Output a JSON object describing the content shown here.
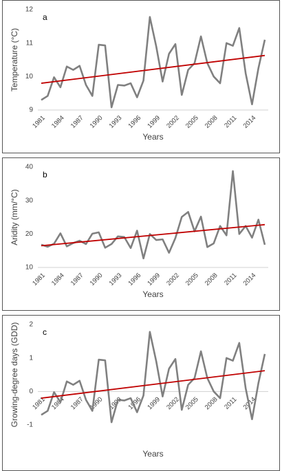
{
  "chart_data": [
    {
      "type": "line",
      "label": "a",
      "y_label": "Temperature (°C)",
      "x_label": "Years",
      "x": [
        1981,
        1982,
        1983,
        1984,
        1985,
        1986,
        1987,
        1988,
        1989,
        1990,
        1991,
        1992,
        1993,
        1994,
        1995,
        1996,
        1997,
        1998,
        1999,
        2000,
        2001,
        2002,
        2003,
        2004,
        2005,
        2006,
        2007,
        2008,
        2009,
        2010,
        2011,
        2012,
        2013,
        2014,
        2015,
        2016
      ],
      "series": [
        {
          "color": "#808080",
          "values": [
            9.3,
            9.42,
            9.98,
            9.68,
            10.3,
            10.2,
            10.32,
            9.75,
            9.42,
            10.95,
            10.93,
            9.08,
            9.75,
            9.73,
            9.8,
            9.38,
            9.88,
            11.78,
            10.9,
            9.85,
            10.68,
            10.97,
            9.45,
            10.2,
            10.4,
            11.2,
            10.4,
            10.0,
            9.8,
            11.0,
            10.92,
            11.45,
            10.1,
            9.17,
            10.25,
            11.1
          ]
        }
      ],
      "trend": {
        "color": "#c00000",
        "values": [
          9.8,
          10.63
        ]
      },
      "xlim": [
        1981,
        2016
      ],
      "xticks": [
        1981,
        1984,
        1987,
        1990,
        1993,
        1996,
        1999,
        2002,
        2005,
        2008,
        2011,
        2014
      ],
      "ylim": [
        9,
        12
      ],
      "yticks": [
        9,
        10,
        11,
        12
      ]
    },
    {
      "type": "line",
      "label": "b",
      "y_label": "Aridity (mm/°C)",
      "x_label": "Years",
      "x": [
        1981,
        1982,
        1983,
        1984,
        1985,
        1986,
        1987,
        1988,
        1989,
        1990,
        1991,
        1992,
        1993,
        1994,
        1995,
        1996,
        1997,
        1998,
        1999,
        2000,
        2001,
        2002,
        2003,
        2004,
        2005,
        2006,
        2007,
        2008,
        2009,
        2010,
        2011,
        2012,
        2013,
        2014,
        2015,
        2016
      ],
      "series": [
        {
          "color": "#808080",
          "values": [
            16.8,
            16.2,
            17.1,
            20.2,
            16.3,
            17.3,
            18.0,
            17.0,
            20.1,
            20.5,
            15.9,
            17.0,
            19.3,
            19.1,
            15.8,
            21.0,
            12.7,
            20.0,
            18.2,
            18.4,
            14.4,
            18.8,
            25.1,
            26.6,
            20.8,
            25.2,
            16.1,
            17.2,
            22.4,
            19.6,
            38.8,
            20.0,
            22.4,
            18.9,
            24.3,
            16.8
          ]
        }
      ],
      "trend": {
        "color": "#c00000",
        "values": [
          16.5,
          22.8
        ]
      },
      "xlim": [
        1981,
        2016
      ],
      "xticks": [
        1981,
        1984,
        1987,
        1990,
        1993,
        1996,
        1999,
        2002,
        2005,
        2008,
        2011,
        2014
      ],
      "ylim": [
        10,
        40
      ],
      "yticks": [
        10,
        20,
        30,
        40
      ]
    },
    {
      "type": "line",
      "label": "c",
      "y_label": "Growing-degree days (GDD)",
      "x_label": "Years",
      "x": [
        1981,
        1982,
        1983,
        1984,
        1985,
        1986,
        1987,
        1988,
        1989,
        1990,
        1991,
        1992,
        1993,
        1994,
        1995,
        1996,
        1997,
        1998,
        1999,
        2000,
        2001,
        2002,
        2003,
        2004,
        2005,
        2006,
        2007,
        2008,
        2009,
        2010,
        2011,
        2012,
        2013,
        2014,
        2015,
        2016
      ],
      "series": [
        {
          "color": "#808080",
          "values": [
            -0.7,
            -0.58,
            -0.02,
            -0.32,
            0.3,
            0.2,
            0.32,
            -0.25,
            -0.58,
            0.95,
            0.93,
            -0.92,
            -0.25,
            -0.27,
            -0.2,
            -0.62,
            -0.12,
            1.78,
            0.9,
            -0.15,
            0.68,
            0.97,
            -0.55,
            0.2,
            0.4,
            1.2,
            0.4,
            0.0,
            -0.2,
            1.0,
            0.92,
            1.45,
            0.1,
            -0.83,
            0.25,
            1.12
          ]
        }
      ],
      "trend": {
        "color": "#c00000",
        "values": [
          -0.2,
          0.62
        ]
      },
      "xlim": [
        1981,
        2016
      ],
      "xticks": [
        1981,
        1984,
        1987,
        1990,
        1993,
        1996,
        1999,
        2002,
        2005,
        2008,
        2011,
        2014
      ],
      "ylim": [
        -1,
        2
      ],
      "yticks": [
        -1,
        0,
        1,
        2
      ]
    }
  ]
}
